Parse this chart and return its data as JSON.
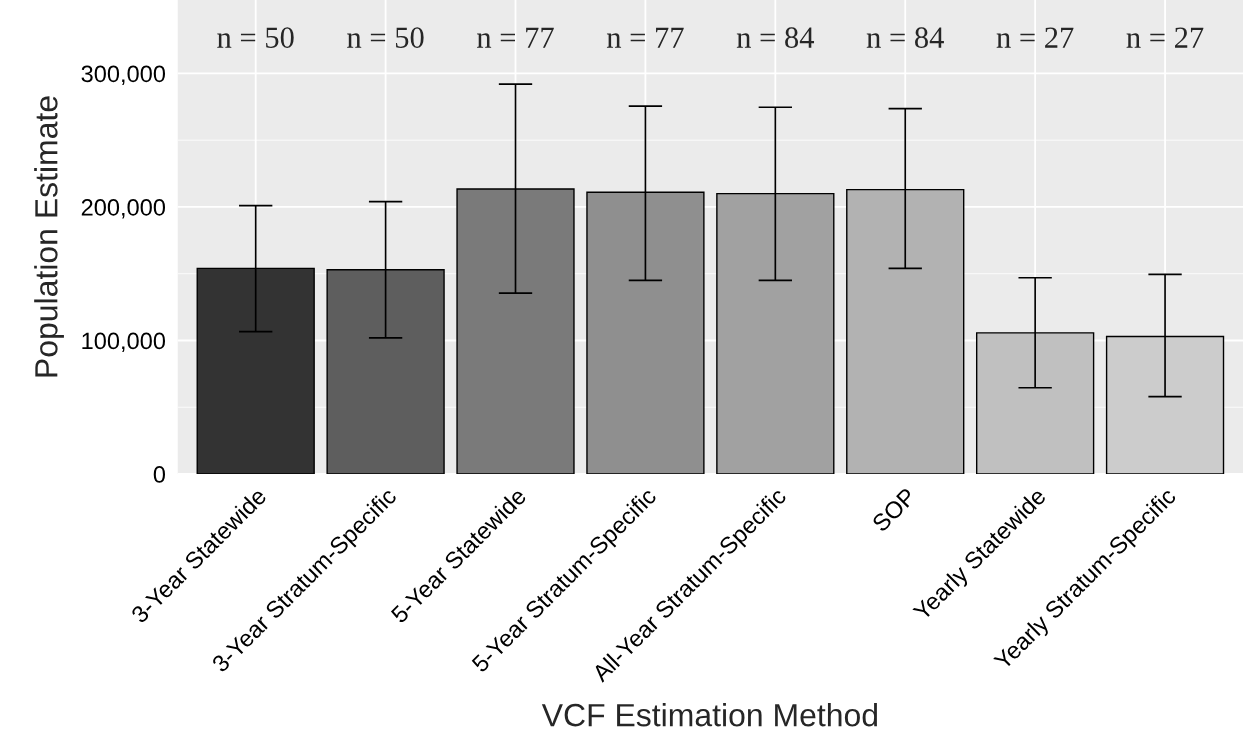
{
  "chart_data": {
    "type": "bar",
    "xlabel": "VCF Estimation Method",
    "ylabel": "Population Estimate",
    "categories": [
      "3-Year Statewide",
      "3-Year Stratum-Specific",
      "5-Year Statewide",
      "5-Year Stratum-Specific",
      "All-Year Stratum-Specific",
      "SOP",
      "Yearly Statewide",
      "Yearly Stratum-Specific"
    ],
    "values": [
      154000,
      153000,
      213500,
      211000,
      210000,
      213000,
      105700,
      103000
    ],
    "colors": [
      "#333333",
      "#5e5e5e",
      "#7a7a7a",
      "#8f8f8f",
      "#a1a1a1",
      "#b2b2b2",
      "#c0c0c0",
      "#cccccc"
    ],
    "errors": [
      [
        106600,
        201000
      ],
      [
        102000,
        204000
      ],
      [
        135500,
        292000
      ],
      [
        145000,
        275500
      ],
      [
        145000,
        274700
      ],
      [
        154000,
        273700
      ],
      [
        64600,
        147000
      ],
      [
        58000,
        149500
      ]
    ],
    "ylim": [
      0,
      355000
    ],
    "yticks": [
      {
        "value": 0,
        "label": "0"
      },
      {
        "value": 100000,
        "label": "100,000"
      },
      {
        "value": 200000,
        "label": "200,000"
      },
      {
        "value": 300000,
        "label": "300,000"
      }
    ],
    "grid": true,
    "annotations": [
      "n = 50",
      "n = 50",
      "n = 77",
      "n = 77",
      "n = 84",
      "n = 84",
      "n = 27",
      "n = 27"
    ]
  }
}
